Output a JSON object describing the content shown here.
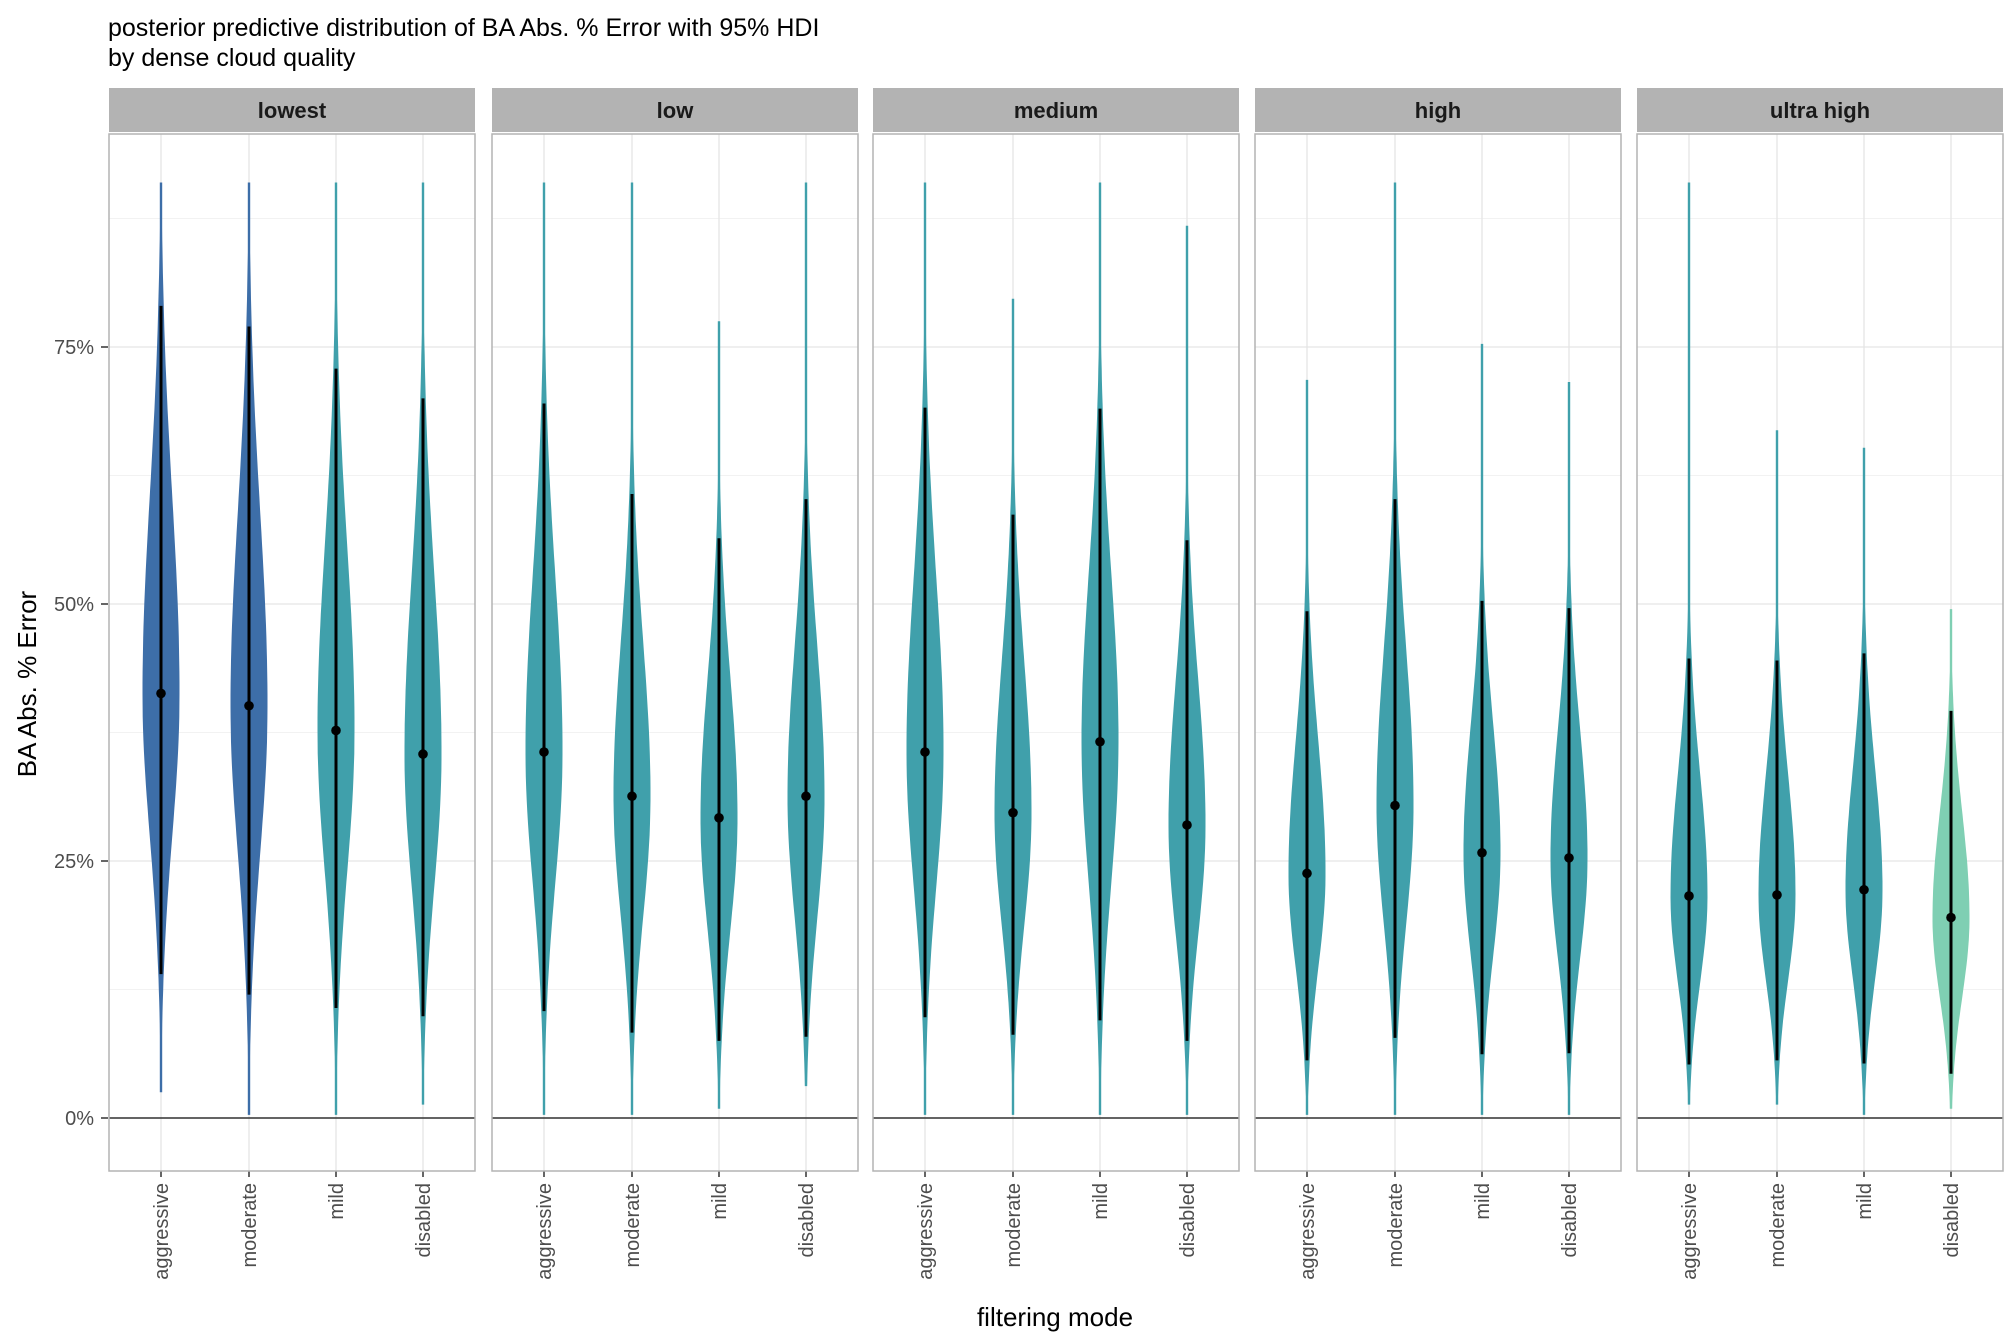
{
  "chart_data": {
    "type": "violin",
    "title": "posterior predictive distribution of BA Abs. % Error with 95% HDI",
    "subtitle": "by dense cloud quality",
    "xlabel": "filtering mode",
    "ylabel": "BA Abs. % Error",
    "y_unit": "percent",
    "ylim": [
      -5,
      96
    ],
    "y_ticks": [
      0,
      25,
      50,
      75
    ],
    "y_tick_labels": [
      "0%",
      "25%",
      "50%",
      "75%"
    ],
    "grid": true,
    "categories": [
      "aggressive",
      "moderate",
      "mild",
      "disabled"
    ],
    "facets": [
      {
        "name": "lowest",
        "groups": [
          {
            "category": "aggressive",
            "median": 41.3,
            "hdi": [
              14.0,
              79.0
            ],
            "min": 2.5,
            "max": 91.0,
            "color": "#3d6ea8"
          },
          {
            "category": "moderate",
            "median": 40.1,
            "hdi": [
              12.0,
              77.0
            ],
            "min": 0.3,
            "max": 91.0,
            "color": "#3d6ea8"
          },
          {
            "category": "mild",
            "median": 37.7,
            "hdi": [
              10.7,
              72.9
            ],
            "min": 0.3,
            "max": 91.0,
            "color": "#40a0ab"
          },
          {
            "category": "disabled",
            "median": 35.4,
            "hdi": [
              9.9,
              70.0
            ],
            "min": 1.3,
            "max": 91.0,
            "color": "#40a0ab"
          }
        ]
      },
      {
        "name": "low",
        "groups": [
          {
            "category": "aggressive",
            "median": 35.6,
            "hdi": [
              10.4,
              69.5
            ],
            "min": 0.3,
            "max": 91.0,
            "color": "#40a0ab"
          },
          {
            "category": "moderate",
            "median": 31.3,
            "hdi": [
              8.3,
              60.7
            ],
            "min": 0.3,
            "max": 91.0,
            "color": "#40a0ab"
          },
          {
            "category": "mild",
            "median": 29.2,
            "hdi": [
              7.5,
              56.4
            ],
            "min": 0.9,
            "max": 77.5,
            "color": "#40a0ab"
          },
          {
            "category": "disabled",
            "median": 31.3,
            "hdi": [
              7.9,
              60.2
            ],
            "min": 3.1,
            "max": 91.0,
            "color": "#40a0ab"
          }
        ]
      },
      {
        "name": "medium",
        "groups": [
          {
            "category": "aggressive",
            "median": 35.6,
            "hdi": [
              9.8,
              69.1
            ],
            "min": 0.3,
            "max": 91.0,
            "color": "#40a0ab"
          },
          {
            "category": "moderate",
            "median": 29.7,
            "hdi": [
              8.1,
              58.7
            ],
            "min": 0.3,
            "max": 79.7,
            "color": "#40a0ab"
          },
          {
            "category": "mild",
            "median": 36.6,
            "hdi": [
              9.5,
              69.0
            ],
            "min": 0.3,
            "max": 91.0,
            "color": "#40a0ab"
          },
          {
            "category": "disabled",
            "median": 28.5,
            "hdi": [
              7.5,
              56.2
            ],
            "min": 0.3,
            "max": 86.8,
            "color": "#40a0ab"
          }
        ]
      },
      {
        "name": "high",
        "groups": [
          {
            "category": "aggressive",
            "median": 23.8,
            "hdi": [
              5.6,
              49.3
            ],
            "min": 0.3,
            "max": 71.8,
            "color": "#40a0ab"
          },
          {
            "category": "moderate",
            "median": 30.4,
            "hdi": [
              7.8,
              60.2
            ],
            "min": 0.3,
            "max": 91.0,
            "color": "#40a0ab"
          },
          {
            "category": "mild",
            "median": 25.8,
            "hdi": [
              6.2,
              50.3
            ],
            "min": 0.3,
            "max": 75.3,
            "color": "#40a0ab"
          },
          {
            "category": "disabled",
            "median": 25.3,
            "hdi": [
              6.3,
              49.6
            ],
            "min": 0.3,
            "max": 71.6,
            "color": "#40a0ab"
          }
        ]
      },
      {
        "name": "ultra high",
        "groups": [
          {
            "category": "aggressive",
            "median": 21.6,
            "hdi": [
              5.2,
              44.7
            ],
            "min": 1.3,
            "max": 91.0,
            "color": "#40a0ab"
          },
          {
            "category": "moderate",
            "median": 21.7,
            "hdi": [
              5.6,
              44.5
            ],
            "min": 1.3,
            "max": 66.9,
            "color": "#40a0ab"
          },
          {
            "category": "mild",
            "median": 22.2,
            "hdi": [
              5.3,
              45.2
            ],
            "min": 0.3,
            "max": 65.2,
            "color": "#40a0ab"
          },
          {
            "category": "disabled",
            "median": 19.5,
            "hdi": [
              4.3,
              39.6
            ],
            "min": 0.9,
            "max": 49.5,
            "color": "#7fcfb3"
          }
        ]
      }
    ]
  },
  "colors": {
    "strip_fill": "#b3b3b3",
    "panel_border": "#b3b3b3",
    "grid_major": "#e5e5e5",
    "grid_minor": "#f2f2f2",
    "zero_line": "#333333",
    "hdi_line": "#000000"
  }
}
